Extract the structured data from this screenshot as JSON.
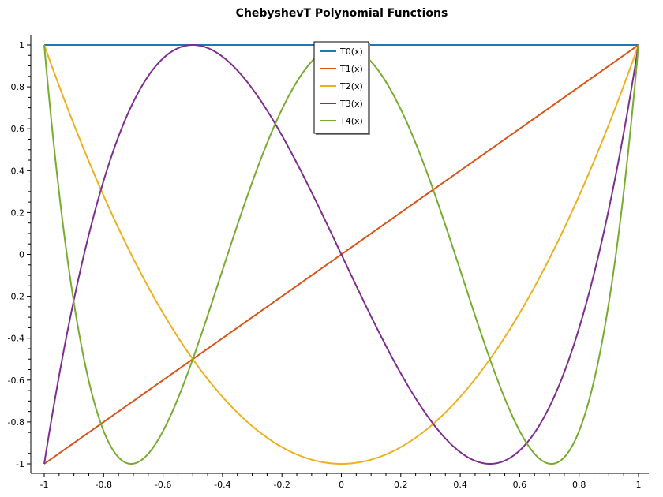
{
  "chart_data": {
    "type": "line",
    "title": "ChebyshevT Polynomial Functions",
    "xlabel": "",
    "ylabel": "",
    "xlim": [
      -1,
      1
    ],
    "ylim": [
      -1,
      1
    ],
    "x_ticks": [
      -1,
      -0.8,
      -0.6,
      -0.4,
      -0.2,
      0,
      0.2,
      0.4,
      0.6,
      0.8,
      1
    ],
    "y_ticks": [
      -1,
      -0.8,
      -0.6,
      -0.4,
      -0.2,
      0,
      0.2,
      0.4,
      0.6,
      0.8,
      1
    ],
    "grid": false,
    "legend_position": "top-center",
    "x": [
      -1,
      -0.95,
      -0.9,
      -0.85,
      -0.8,
      -0.75,
      -0.7,
      -0.65,
      -0.6,
      -0.55,
      -0.5,
      -0.45,
      -0.4,
      -0.35,
      -0.3,
      -0.25,
      -0.2,
      -0.15,
      -0.1,
      -0.05,
      0,
      0.05,
      0.1,
      0.15,
      0.2,
      0.25,
      0.3,
      0.35,
      0.4,
      0.45,
      0.5,
      0.55,
      0.6,
      0.65,
      0.7,
      0.75,
      0.8,
      0.85,
      0.9,
      0.95,
      1
    ],
    "series": [
      {
        "name": "T0(x)",
        "color": "#1f77b4",
        "values": [
          1,
          1,
          1,
          1,
          1,
          1,
          1,
          1,
          1,
          1,
          1,
          1,
          1,
          1,
          1,
          1,
          1,
          1,
          1,
          1,
          1,
          1,
          1,
          1,
          1,
          1,
          1,
          1,
          1,
          1,
          1,
          1,
          1,
          1,
          1,
          1,
          1,
          1,
          1,
          1,
          1
        ]
      },
      {
        "name": "T1(x)",
        "color": "#d95319",
        "values": [
          -1,
          -0.95,
          -0.9,
          -0.85,
          -0.8,
          -0.75,
          -0.7,
          -0.65,
          -0.6,
          -0.55,
          -0.5,
          -0.45,
          -0.4,
          -0.35,
          -0.3,
          -0.25,
          -0.2,
          -0.15,
          -0.1,
          -0.05,
          0,
          0.05,
          0.1,
          0.15,
          0.2,
          0.25,
          0.3,
          0.35,
          0.4,
          0.45,
          0.5,
          0.55,
          0.6,
          0.65,
          0.7,
          0.75,
          0.8,
          0.85,
          0.9,
          0.95,
          1
        ]
      },
      {
        "name": "T2(x)",
        "color": "#edb120",
        "values": [
          1,
          0.805,
          0.62,
          0.445,
          0.28,
          0.125,
          -0.02,
          -0.155,
          -0.28,
          -0.395,
          -0.5,
          -0.595,
          -0.68,
          -0.755,
          -0.82,
          -0.875,
          -0.92,
          -0.955,
          -0.98,
          -0.995,
          -1,
          -0.995,
          -0.98,
          -0.955,
          -0.92,
          -0.875,
          -0.82,
          -0.755,
          -0.68,
          -0.595,
          -0.5,
          -0.395,
          -0.28,
          -0.155,
          -0.02,
          0.125,
          0.28,
          0.445,
          0.62,
          0.805,
          1
        ]
      },
      {
        "name": "T3(x)",
        "color": "#7e2f8e",
        "values": [
          -1,
          -0.5795,
          -0.216,
          0.0935,
          0.352,
          0.5625,
          0.728,
          0.8515,
          0.936,
          0.9845,
          1,
          0.9855,
          0.944,
          0.8785,
          0.792,
          0.6875,
          0.568,
          0.4365,
          0.296,
          0.1495,
          0,
          -0.1495,
          -0.296,
          -0.4365,
          -0.568,
          -0.6875,
          -0.792,
          -0.8785,
          -0.944,
          -0.9855,
          -1,
          -0.9845,
          -0.936,
          -0.8515,
          -0.728,
          -0.5625,
          -0.352,
          -0.0935,
          0.216,
          0.5795,
          1
        ]
      },
      {
        "name": "T4(x)",
        "color": "#77ac30",
        "values": [
          1,
          0.2951,
          -0.2158,
          -0.5693,
          -0.7952,
          -0.9187,
          -0.9608,
          -0.9383,
          -0.8432,
          -0.6943,
          -0.5,
          -0.2923,
          -0.0752,
          0.1403,
          0.3448,
          0.5313,
          0.6928,
          0.8243,
          0.9208,
          0.9803,
          1,
          0.9803,
          0.9208,
          0.8243,
          0.6928,
          0.5313,
          0.3448,
          0.1403,
          -0.0752,
          -0.2923,
          -0.5,
          -0.6943,
          -0.8432,
          -0.9383,
          -0.9608,
          -0.9187,
          -0.7952,
          -0.5693,
          -0.2158,
          0.2951,
          1
        ]
      }
    ]
  }
}
